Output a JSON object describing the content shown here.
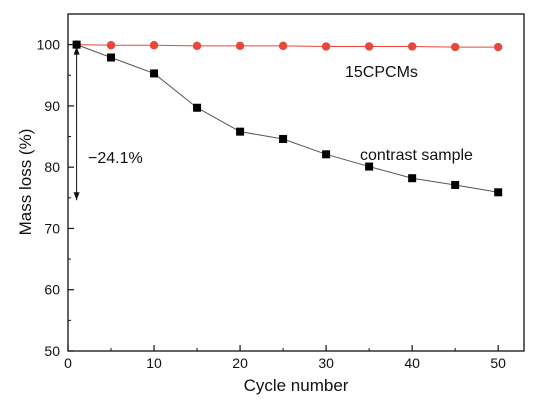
{
  "chart_data": {
    "type": "line",
    "title": "",
    "xlabel": "Cycle number",
    "ylabel": "Mass loss (%)",
    "xlim": [
      0,
      53
    ],
    "ylim": [
      50,
      105
    ],
    "xticks": [
      0,
      10,
      20,
      30,
      40,
      50
    ],
    "yticks": [
      50,
      60,
      70,
      80,
      90,
      100
    ],
    "grid": false,
    "series": [
      {
        "name": "15CPCMs",
        "color": "#e8483a",
        "marker": "circle",
        "x": [
          1,
          5,
          10,
          15,
          20,
          25,
          30,
          35,
          40,
          45,
          50
        ],
        "y": [
          100,
          99.9,
          99.9,
          99.8,
          99.8,
          99.8,
          99.7,
          99.7,
          99.7,
          99.6,
          99.6
        ]
      },
      {
        "name": "contrast sample",
        "color": "#000000",
        "marker": "square",
        "x": [
          1,
          5,
          10,
          15,
          20,
          25,
          30,
          35,
          40,
          45,
          50
        ],
        "y": [
          100,
          97.9,
          95.3,
          89.7,
          85.8,
          84.6,
          82.1,
          80.1,
          78.2,
          77.1,
          75.9
        ]
      }
    ],
    "annotations": [
      {
        "text": "−24.1%",
        "arrow": "double-headed vertical",
        "from_y": 100,
        "to_y": 75.9,
        "at_x": 1
      }
    ]
  }
}
